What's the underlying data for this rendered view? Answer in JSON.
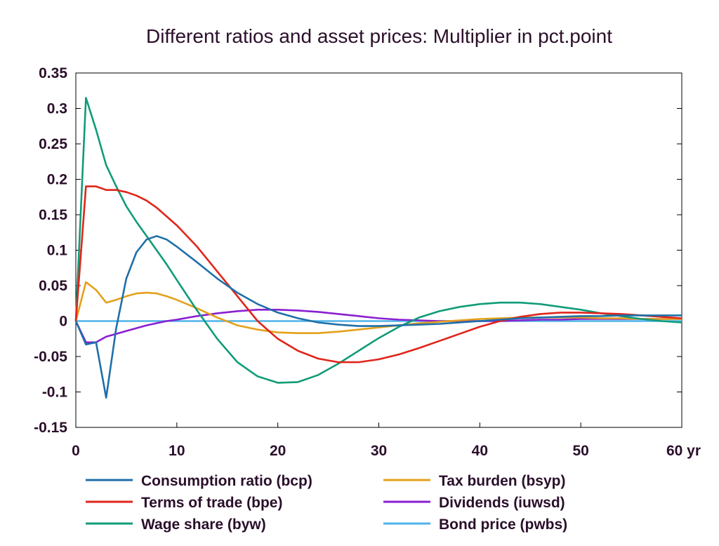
{
  "chart_data": {
    "type": "line",
    "title": "Different ratios and asset prices: Multiplier in pct.point",
    "xlabel": "",
    "ylabel": "",
    "xlim": [
      0,
      60
    ],
    "ylim": [
      -0.15,
      0.35
    ],
    "x_ticks": [
      0,
      10,
      20,
      30,
      40,
      50,
      60
    ],
    "x_tick_labels": [
      "0",
      "10",
      "20",
      "30",
      "40",
      "50",
      "60 yr"
    ],
    "y_ticks": [
      -0.15,
      -0.1,
      -0.05,
      0,
      0.05,
      0.1,
      0.15,
      0.2,
      0.25,
      0.3,
      0.35
    ],
    "y_tick_labels": [
      "-0.15",
      "-0.1",
      "-0.05",
      "0",
      "0.05",
      "0.1",
      "0.15",
      "0.2",
      "0.25",
      "0.3",
      "0.35"
    ],
    "grid": false,
    "legend_position": "bottom",
    "series": [
      {
        "name": "Consumption ratio (bcp)",
        "color": "#1f6fa8",
        "x": [
          0,
          1,
          2,
          3,
          4,
          5,
          6,
          7,
          8,
          9,
          10,
          12,
          14,
          16,
          18,
          20,
          22,
          24,
          26,
          28,
          30,
          32,
          34,
          36,
          38,
          40,
          42,
          44,
          46,
          48,
          50,
          52,
          54,
          56,
          58,
          60
        ],
        "y": [
          0,
          -0.033,
          -0.03,
          -0.108,
          -0.01,
          0.06,
          0.097,
          0.115,
          0.12,
          0.115,
          0.105,
          0.083,
          0.06,
          0.04,
          0.024,
          0.012,
          0.004,
          -0.002,
          -0.005,
          -0.007,
          -0.007,
          -0.006,
          -0.005,
          -0.004,
          -0.002,
          0,
          0.002,
          0.004,
          0.005,
          0.006,
          0.007,
          0.007,
          0.008,
          0.008,
          0.008,
          0.008
        ]
      },
      {
        "name": "Terms of trade (bpe)",
        "color": "#e0251b",
        "x": [
          0,
          1,
          2,
          3,
          4,
          5,
          6,
          7,
          8,
          10,
          12,
          14,
          16,
          18,
          20,
          22,
          24,
          26,
          28,
          30,
          32,
          34,
          36,
          38,
          40,
          42,
          44,
          46,
          48,
          50,
          52,
          54,
          56,
          58,
          60
        ],
        "y": [
          0,
          0.19,
          0.19,
          0.185,
          0.185,
          0.182,
          0.177,
          0.17,
          0.16,
          0.135,
          0.105,
          0.07,
          0.035,
          0,
          -0.025,
          -0.042,
          -0.053,
          -0.058,
          -0.058,
          -0.054,
          -0.047,
          -0.038,
          -0.028,
          -0.018,
          -0.008,
          0,
          0.006,
          0.01,
          0.012,
          0.012,
          0.011,
          0.01,
          0.008,
          0.006,
          0.004
        ]
      },
      {
        "name": "Wage share (byw)",
        "color": "#109c78",
        "x": [
          0,
          1,
          2,
          3,
          4,
          5,
          6,
          7,
          8,
          9,
          10,
          12,
          14,
          16,
          18,
          20,
          22,
          24,
          26,
          28,
          30,
          32,
          34,
          36,
          38,
          40,
          42,
          44,
          46,
          48,
          50,
          52,
          54,
          56,
          58,
          60
        ],
        "y": [
          0,
          0.315,
          0.27,
          0.22,
          0.19,
          0.162,
          0.14,
          0.12,
          0.1,
          0.08,
          0.058,
          0.015,
          -0.025,
          -0.058,
          -0.078,
          -0.087,
          -0.086,
          -0.076,
          -0.06,
          -0.042,
          -0.024,
          -0.008,
          0.005,
          0.014,
          0.02,
          0.024,
          0.026,
          0.026,
          0.024,
          0.02,
          0.016,
          0.011,
          0.007,
          0.003,
          0,
          -0.002
        ]
      },
      {
        "name": "Tax burden (bsyp)",
        "color": "#e3a11a",
        "x": [
          0,
          1,
          2,
          3,
          4,
          5,
          6,
          7,
          8,
          9,
          10,
          12,
          14,
          16,
          18,
          20,
          22,
          24,
          26,
          28,
          30,
          32,
          34,
          36,
          38,
          40,
          42,
          44,
          46,
          48,
          50,
          52,
          54,
          56,
          58,
          60
        ],
        "y": [
          0,
          0.055,
          0.044,
          0.026,
          0.03,
          0.035,
          0.039,
          0.04,
          0.039,
          0.035,
          0.03,
          0.018,
          0.005,
          -0.006,
          -0.012,
          -0.016,
          -0.017,
          -0.017,
          -0.015,
          -0.012,
          -0.009,
          -0.006,
          -0.003,
          -0.001,
          0.001,
          0.003,
          0.004,
          0.005,
          0.005,
          0.005,
          0.005,
          0.004,
          0.004,
          0.003,
          0.003,
          0.003
        ]
      },
      {
        "name": "Dividends (iuwsd)",
        "color": "#8a1fd1",
        "x": [
          0,
          1,
          2,
          3,
          4,
          5,
          6,
          7,
          8,
          9,
          10,
          12,
          14,
          16,
          18,
          20,
          22,
          24,
          26,
          28,
          30,
          32,
          34,
          36,
          38,
          40,
          42,
          44,
          46,
          48,
          50,
          52,
          54,
          56,
          58,
          60
        ],
        "y": [
          0,
          -0.03,
          -0.03,
          -0.022,
          -0.018,
          -0.014,
          -0.01,
          -0.006,
          -0.003,
          0,
          0.002,
          0.007,
          0.011,
          0.014,
          0.016,
          0.016,
          0.015,
          0.013,
          0.01,
          0.007,
          0.004,
          0.002,
          0.001,
          0,
          0,
          0,
          0,
          0.001,
          0.002,
          0.002,
          0.003,
          0.003,
          0.003,
          0.003,
          0.003,
          0.003
        ]
      },
      {
        "name": "Bond price (pwbs)",
        "color": "#4fb3e8",
        "x": [
          0,
          10,
          20,
          30,
          40,
          50,
          60
        ],
        "y": [
          0,
          0,
          0,
          0,
          0,
          0,
          0
        ]
      }
    ]
  }
}
